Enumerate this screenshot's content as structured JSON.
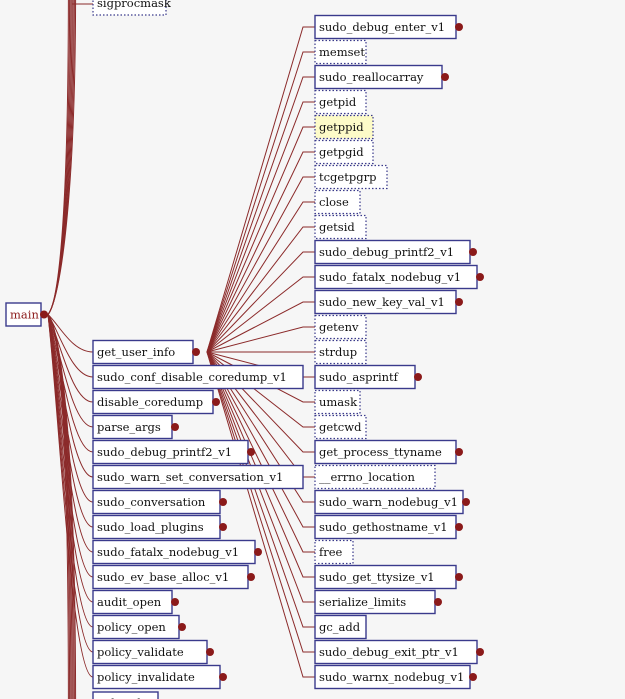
{
  "root": {
    "label": "main"
  },
  "hub": {
    "label": "get_user_info"
  },
  "top_partial": {
    "label": "sigprocmask"
  },
  "bottom_partial": {
    "label": "policy_list"
  },
  "left_column": [
    {
      "label": "get_user_info",
      "expandable": true,
      "style": "solid"
    },
    {
      "label": "sudo_conf_disable_coredump_v1",
      "expandable": false,
      "style": "solid"
    },
    {
      "label": "disable_coredump",
      "expandable": true,
      "style": "solid"
    },
    {
      "label": "parse_args",
      "expandable": true,
      "style": "solid"
    },
    {
      "label": "sudo_debug_printf2_v1",
      "expandable": true,
      "style": "solid"
    },
    {
      "label": "sudo_warn_set_conversation_v1",
      "expandable": false,
      "style": "solid"
    },
    {
      "label": "sudo_conversation",
      "expandable": true,
      "style": "solid"
    },
    {
      "label": "sudo_load_plugins",
      "expandable": true,
      "style": "solid"
    },
    {
      "label": "sudo_fatalx_nodebug_v1",
      "expandable": true,
      "style": "solid"
    },
    {
      "label": "sudo_ev_base_alloc_v1",
      "expandable": true,
      "style": "solid"
    },
    {
      "label": "audit_open",
      "expandable": true,
      "style": "solid"
    },
    {
      "label": "policy_open",
      "expandable": true,
      "style": "solid"
    },
    {
      "label": "policy_validate",
      "expandable": true,
      "style": "solid"
    },
    {
      "label": "policy_invalidate",
      "expandable": true,
      "style": "solid"
    }
  ],
  "right_column": [
    {
      "label": "sudo_debug_enter_v1",
      "expandable": true,
      "style": "solid"
    },
    {
      "label": "memset",
      "expandable": false,
      "style": "dotted"
    },
    {
      "label": "sudo_reallocarray",
      "expandable": true,
      "style": "solid"
    },
    {
      "label": "getpid",
      "expandable": false,
      "style": "dotted"
    },
    {
      "label": "getppid",
      "expandable": false,
      "style": "dotted",
      "highlighted": true
    },
    {
      "label": "getpgid",
      "expandable": false,
      "style": "dotted"
    },
    {
      "label": "tcgetpgrp",
      "expandable": false,
      "style": "dotted"
    },
    {
      "label": "close",
      "expandable": false,
      "style": "dotted"
    },
    {
      "label": "getsid",
      "expandable": false,
      "style": "dotted"
    },
    {
      "label": "sudo_debug_printf2_v1",
      "expandable": true,
      "style": "solid"
    },
    {
      "label": "sudo_fatalx_nodebug_v1",
      "expandable": true,
      "style": "solid"
    },
    {
      "label": "sudo_new_key_val_v1",
      "expandable": true,
      "style": "solid"
    },
    {
      "label": "getenv",
      "expandable": false,
      "style": "dotted"
    },
    {
      "label": "strdup",
      "expandable": false,
      "style": "dotted"
    },
    {
      "label": "sudo_asprintf",
      "expandable": true,
      "style": "solid"
    },
    {
      "label": "umask",
      "expandable": false,
      "style": "dotted"
    },
    {
      "label": "getcwd",
      "expandable": false,
      "style": "dotted"
    },
    {
      "label": "get_process_ttyname",
      "expandable": true,
      "style": "solid"
    },
    {
      "label": "__errno_location",
      "expandable": false,
      "style": "dotted"
    },
    {
      "label": "sudo_warn_nodebug_v1",
      "expandable": true,
      "style": "solid"
    },
    {
      "label": "sudo_gethostname_v1",
      "expandable": true,
      "style": "solid"
    },
    {
      "label": "free",
      "expandable": false,
      "style": "dotted"
    },
    {
      "label": "sudo_get_ttysize_v1",
      "expandable": true,
      "style": "solid"
    },
    {
      "label": "serialize_limits",
      "expandable": true,
      "style": "solid"
    },
    {
      "label": "gc_add",
      "expandable": false,
      "style": "solid"
    },
    {
      "label": "sudo_debug_exit_ptr_v1",
      "expandable": true,
      "style": "solid"
    },
    {
      "label": "sudo_warnx_nodebug_v1",
      "expandable": true,
      "style": "solid"
    }
  ],
  "colors": {
    "edge": "#8b2a2a",
    "node_border": "#3a3a8c",
    "highlight": "#fdfbc8",
    "root_text": "#8b1a1a"
  }
}
